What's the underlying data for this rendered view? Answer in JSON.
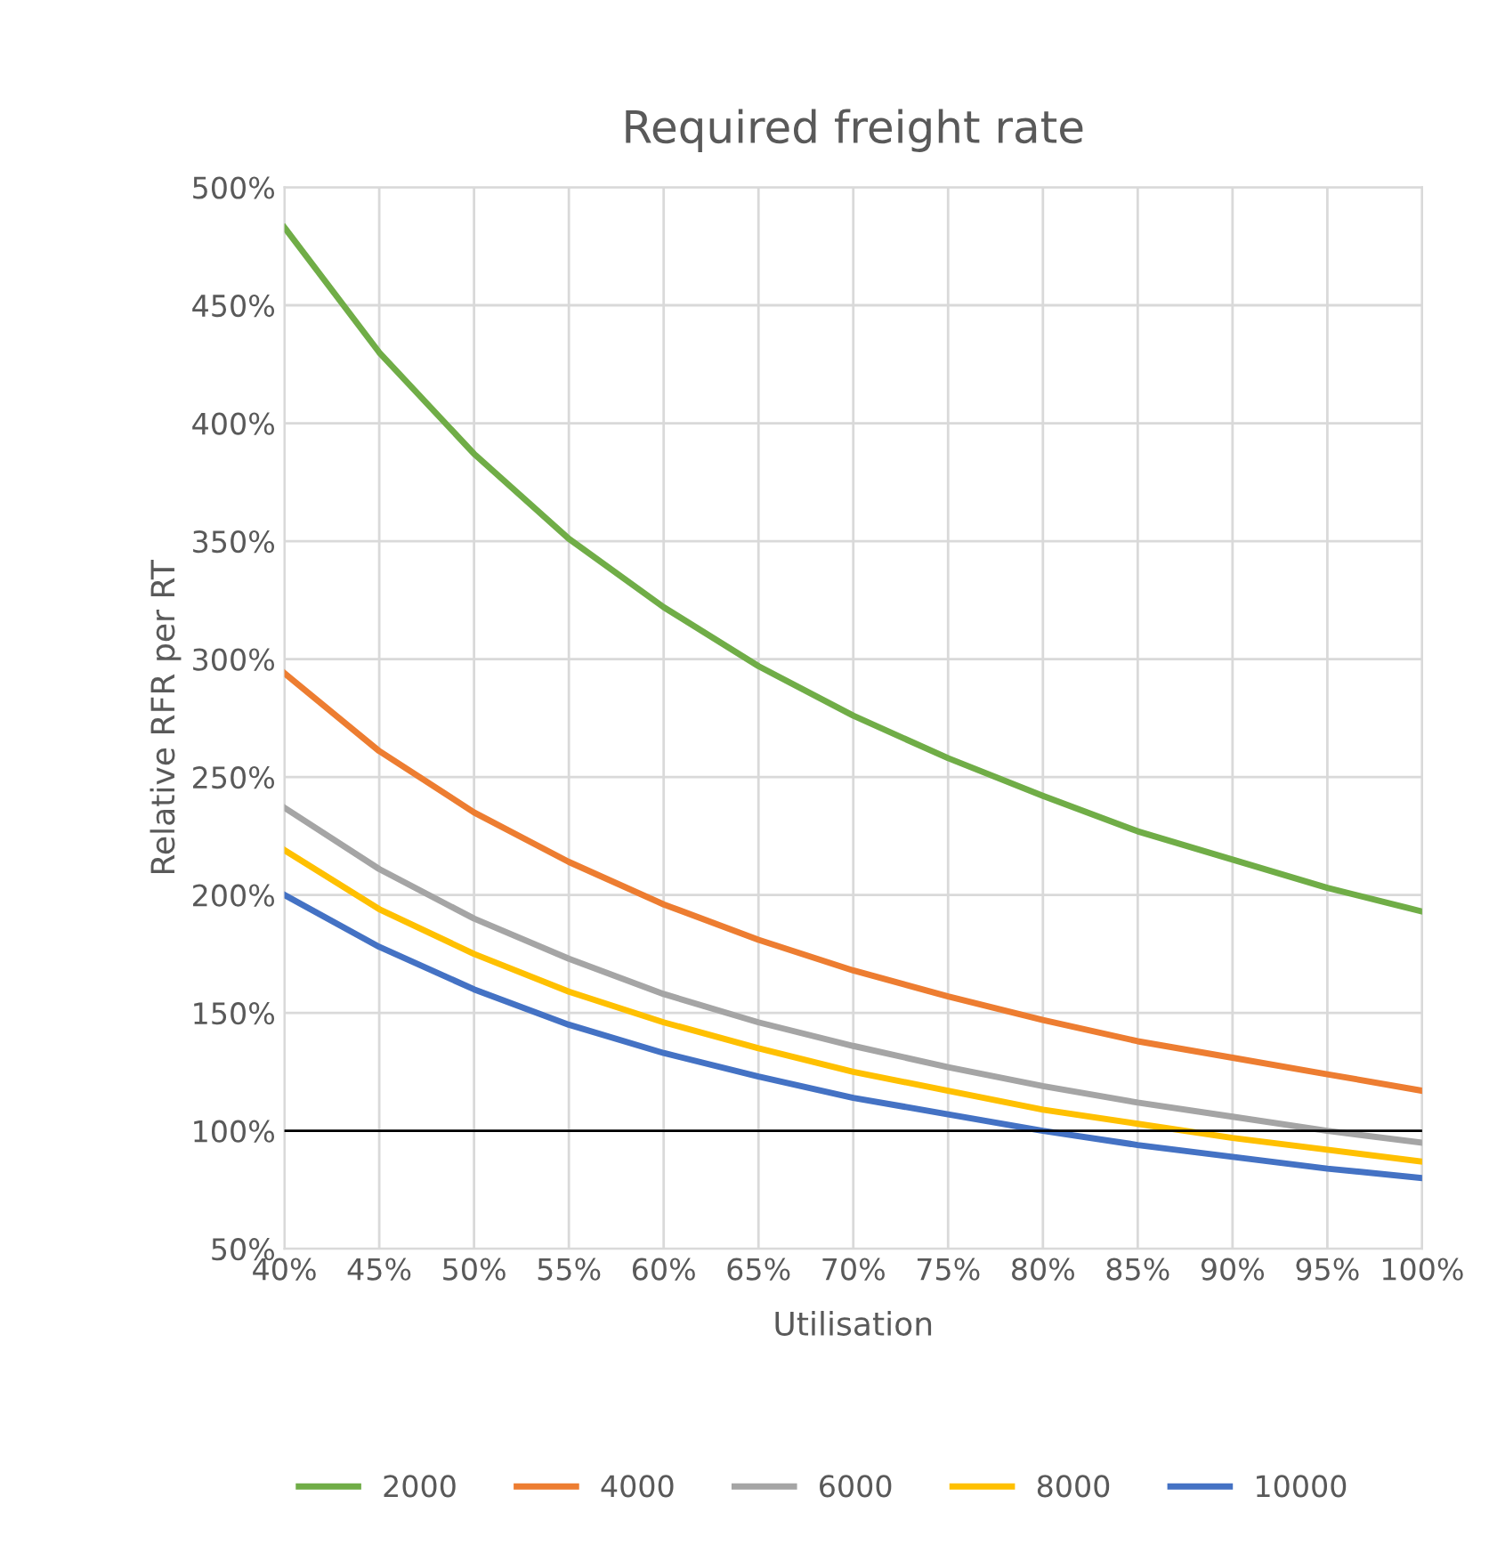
{
  "chart_data": {
    "type": "line",
    "title": "Required freight rate",
    "xlabel": "Utilisation",
    "ylabel": "Relative RFR per RT",
    "x": [
      40,
      45,
      50,
      55,
      60,
      65,
      70,
      75,
      80,
      85,
      90,
      95,
      100
    ],
    "series": [
      {
        "name": "2000",
        "color": "#70ad47",
        "values": [
          483,
          430,
          387,
          351,
          322,
          297,
          276,
          258,
          242,
          227,
          215,
          203,
          193
        ]
      },
      {
        "name": "4000",
        "color": "#ed7d31",
        "values": [
          294,
          261,
          235,
          214,
          196,
          181,
          168,
          157,
          147,
          138,
          131,
          124,
          117
        ]
      },
      {
        "name": "6000",
        "color": "#a5a5a5",
        "values": [
          237,
          211,
          190,
          173,
          158,
          146,
          136,
          127,
          119,
          112,
          106,
          100,
          95
        ]
      },
      {
        "name": "8000",
        "color": "#ffc000",
        "values": [
          219,
          194,
          175,
          159,
          146,
          135,
          125,
          117,
          109,
          103,
          97,
          92,
          87
        ]
      },
      {
        "name": "10000",
        "color": "#4472c4",
        "values": [
          200,
          178,
          160,
          145,
          133,
          123,
          114,
          107,
          100,
          94,
          89,
          84,
          80
        ]
      }
    ],
    "xlim": [
      40,
      100
    ],
    "xticks": [
      {
        "value": 40,
        "label": "40%"
      },
      {
        "value": 45,
        "label": "45%"
      },
      {
        "value": 50,
        "label": "50%"
      },
      {
        "value": 55,
        "label": "55%"
      },
      {
        "value": 60,
        "label": "60%"
      },
      {
        "value": 65,
        "label": "65%"
      },
      {
        "value": 70,
        "label": "70%"
      },
      {
        "value": 75,
        "label": "75%"
      },
      {
        "value": 80,
        "label": "80%"
      },
      {
        "value": 85,
        "label": "85%"
      },
      {
        "value": 90,
        "label": "90%"
      },
      {
        "value": 95,
        "label": "95%"
      },
      {
        "value": 100,
        "label": "100%"
      }
    ],
    "ylim": [
      50,
      500
    ],
    "yticks": [
      {
        "value": 50,
        "label": "50%"
      },
      {
        "value": 100,
        "label": "100%"
      },
      {
        "value": 150,
        "label": "150%"
      },
      {
        "value": 200,
        "label": "200%"
      },
      {
        "value": 250,
        "label": "250%"
      },
      {
        "value": 300,
        "label": "300%"
      },
      {
        "value": 350,
        "label": "350%"
      },
      {
        "value": 400,
        "label": "400%"
      },
      {
        "value": 450,
        "label": "450%"
      },
      {
        "value": 500,
        "label": "500%"
      }
    ],
    "ref_lines": [
      {
        "axis": "y",
        "value": 100,
        "color": "#000000"
      }
    ],
    "grid": true,
    "legend": "bottom",
    "marker": "none",
    "line_style": "solid"
  }
}
